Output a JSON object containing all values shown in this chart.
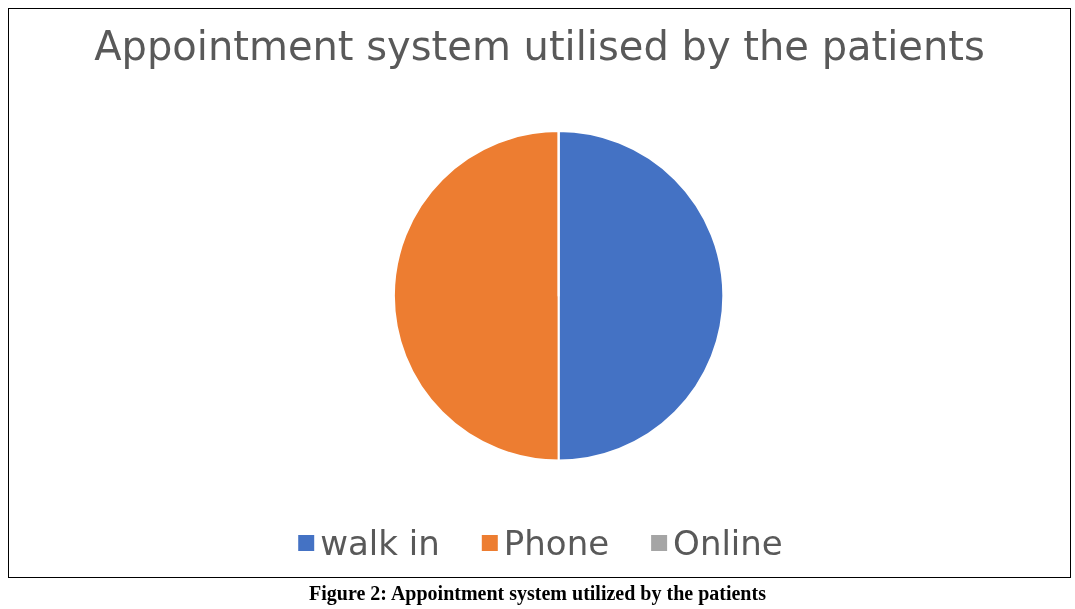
{
  "chart_data": {
    "type": "pie",
    "title": "Appointment system utilised by the patients",
    "categories": [
      "walk in",
      "Phone",
      "Online"
    ],
    "values": [
      50,
      50,
      0
    ],
    "colors": [
      "#4472c4",
      "#ed7d31",
      "#a5a5a5"
    ],
    "legend": "bottom",
    "annotations": [
      "Figure 2: Appointment system utilized by the patients"
    ]
  }
}
